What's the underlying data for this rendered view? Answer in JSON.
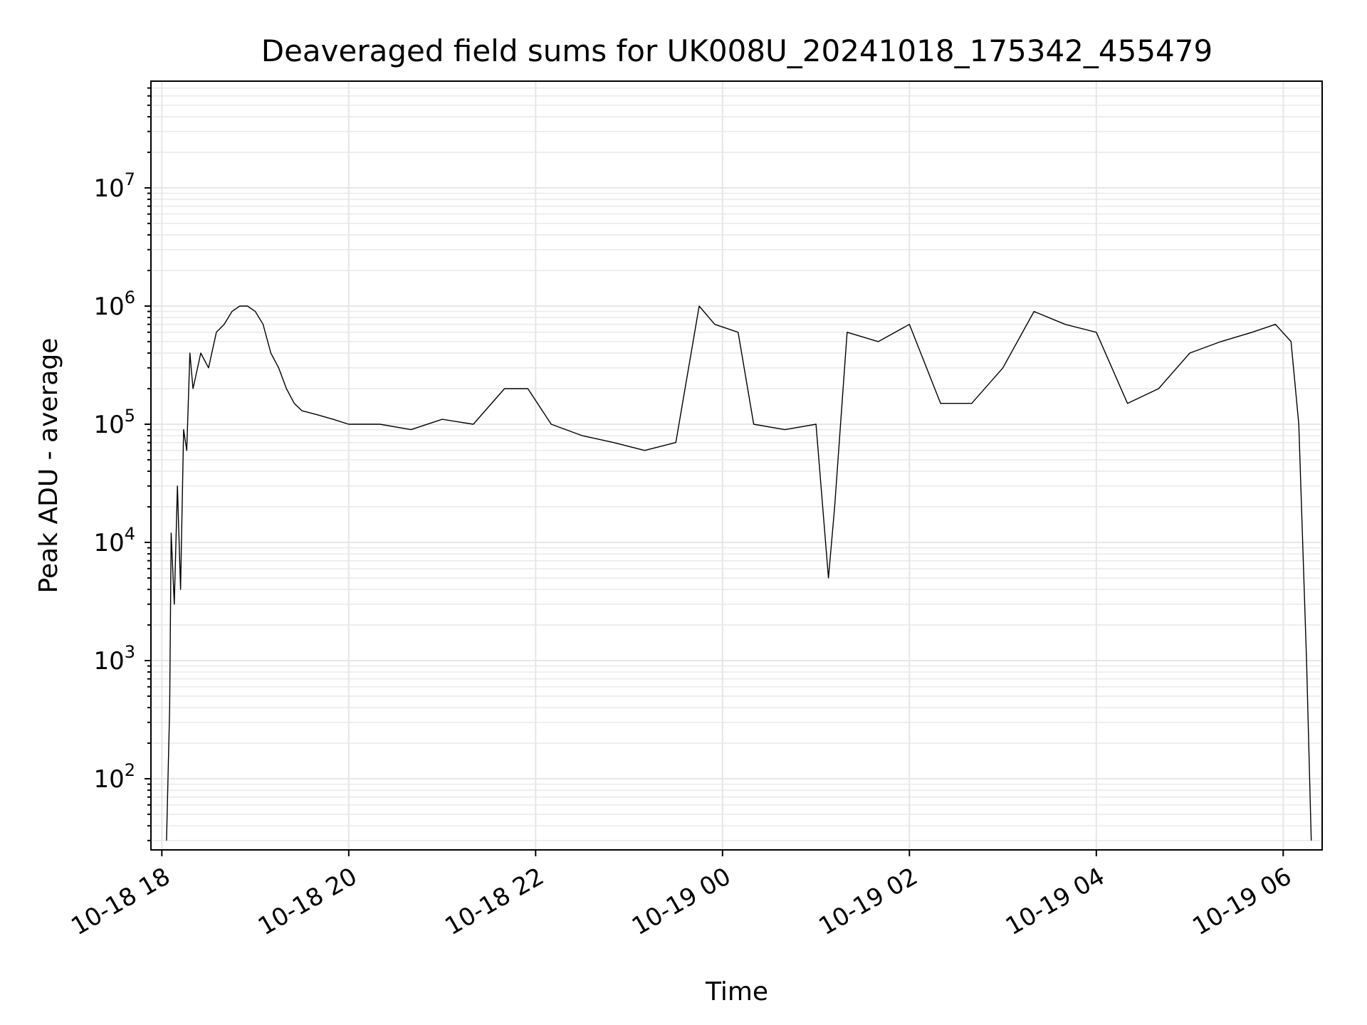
{
  "chart_data": {
    "type": "line",
    "title": "Deaveraged field sums for UK008U_20241018_175342_455479",
    "xlabel": "Time",
    "ylabel": "Peak ADU - average",
    "yscale": "log",
    "grid": true,
    "xlim": [
      "2024-10-18 17:53",
      "2024-10-19 06:25"
    ],
    "ylim": [
      25,
      80000000
    ],
    "x_ticks": [
      {
        "label": "10-18 18",
        "value": "2024-10-18 18:00"
      },
      {
        "label": "10-18 20",
        "value": "2024-10-18 20:00"
      },
      {
        "label": "10-18 22",
        "value": "2024-10-18 22:00"
      },
      {
        "label": "10-19 00",
        "value": "2024-10-19 00:00"
      },
      {
        "label": "10-19 02",
        "value": "2024-10-19 02:00"
      },
      {
        "label": "10-19 04",
        "value": "2024-10-19 04:00"
      },
      {
        "label": "10-19 06",
        "value": "2024-10-19 06:00"
      }
    ],
    "y_ticks": [
      {
        "base": "10",
        "exp": "2",
        "value": 100
      },
      {
        "base": "10",
        "exp": "3",
        "value": 1000
      },
      {
        "base": "10",
        "exp": "4",
        "value": 10000
      },
      {
        "base": "10",
        "exp": "5",
        "value": 100000
      },
      {
        "base": "10",
        "exp": "6",
        "value": 1000000
      },
      {
        "base": "10",
        "exp": "7",
        "value": 10000000
      }
    ],
    "series": [
      {
        "color": "#000000",
        "x": [
          "2024-10-18 18:03",
          "2024-10-18 18:05",
          "2024-10-18 18:06",
          "2024-10-18 18:08",
          "2024-10-18 18:10",
          "2024-10-18 18:12",
          "2024-10-18 18:14",
          "2024-10-18 18:16",
          "2024-10-18 18:18",
          "2024-10-18 18:20",
          "2024-10-18 18:25",
          "2024-10-18 18:30",
          "2024-10-18 18:35",
          "2024-10-18 18:40",
          "2024-10-18 18:45",
          "2024-10-18 18:50",
          "2024-10-18 18:55",
          "2024-10-18 19:00",
          "2024-10-18 19:05",
          "2024-10-18 19:10",
          "2024-10-18 19:15",
          "2024-10-18 19:20",
          "2024-10-18 19:25",
          "2024-10-18 19:30",
          "2024-10-18 19:40",
          "2024-10-18 19:50",
          "2024-10-18 20:00",
          "2024-10-18 20:20",
          "2024-10-18 20:40",
          "2024-10-18 21:00",
          "2024-10-18 21:20",
          "2024-10-18 21:40",
          "2024-10-18 21:55",
          "2024-10-18 22:10",
          "2024-10-18 22:30",
          "2024-10-18 22:50",
          "2024-10-18 23:10",
          "2024-10-18 23:30",
          "2024-10-18 23:45",
          "2024-10-18 23:55",
          "2024-10-19 00:10",
          "2024-10-19 00:20",
          "2024-10-19 00:40",
          "2024-10-19 01:00",
          "2024-10-19 01:08",
          "2024-10-19 01:12",
          "2024-10-19 01:20",
          "2024-10-19 01:40",
          "2024-10-19 02:00",
          "2024-10-19 02:20",
          "2024-10-19 02:40",
          "2024-10-19 03:00",
          "2024-10-19 03:20",
          "2024-10-19 03:40",
          "2024-10-19 04:00",
          "2024-10-19 04:20",
          "2024-10-19 04:40",
          "2024-10-19 05:00",
          "2024-10-19 05:20",
          "2024-10-19 05:40",
          "2024-10-19 05:55",
          "2024-10-19 06:05",
          "2024-10-19 06:10",
          "2024-10-19 06:15",
          "2024-10-19 06:18"
        ],
        "values": [
          30,
          400,
          12000,
          3000,
          30000,
          4000,
          90000,
          60000,
          400000,
          200000,
          400000,
          300000,
          600000,
          700000,
          900000,
          1000000,
          1000000,
          900000,
          700000,
          400000,
          300000,
          200000,
          150000,
          130000,
          120000,
          110000,
          100000,
          100000,
          90000,
          110000,
          100000,
          200000,
          200000,
          100000,
          80000,
          70000,
          60000,
          70000,
          1000000,
          700000,
          600000,
          100000,
          90000,
          100000,
          5000,
          20000,
          600000,
          500000,
          700000,
          150000,
          150000,
          300000,
          900000,
          700000,
          600000,
          150000,
          200000,
          400000,
          500000,
          600000,
          700000,
          500000,
          100000,
          1000,
          30
        ]
      }
    ]
  }
}
